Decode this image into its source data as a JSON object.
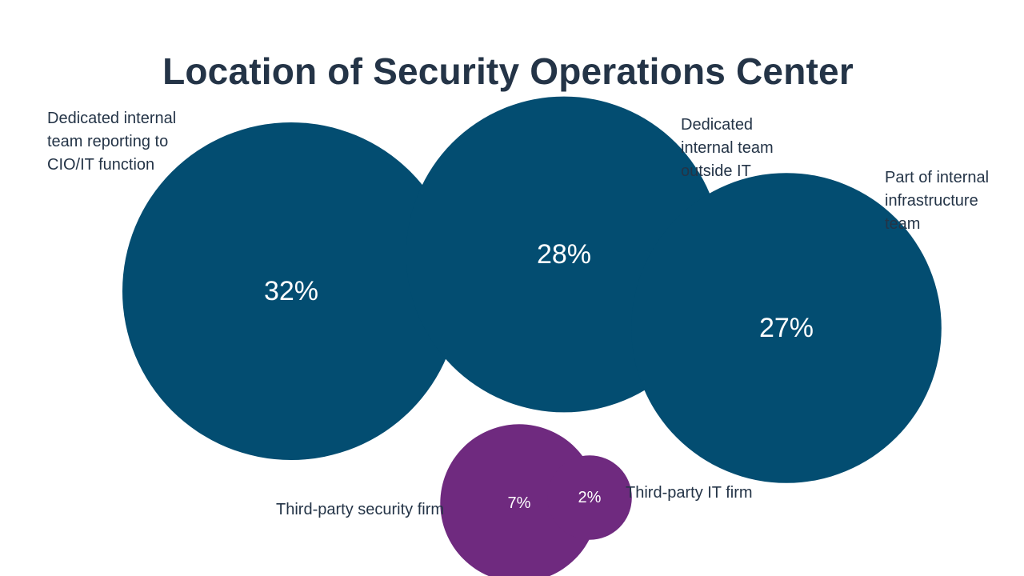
{
  "chart_data": {
    "type": "bubble",
    "title": "Location of Security Operations Center",
    "unit": "%",
    "colors": {
      "primary": "#034d71",
      "secondary": "#6f2a7f"
    },
    "points": [
      {
        "category": "Dedicated internal team reporting to CIO/IT function",
        "value": 32,
        "label": "32%",
        "color": "#034d71"
      },
      {
        "category": "Dedicated internal team outside IT",
        "value": 28,
        "label": "28%",
        "color": "#034d71"
      },
      {
        "category": "Part of internal infrastructure team",
        "value": 27,
        "label": "27%",
        "color": "#034d71"
      },
      {
        "category": "Third-party security firm",
        "value": 7,
        "label": "7%",
        "color": "#6f2a7f"
      },
      {
        "category": "Third-party IT firm",
        "value": 2,
        "label": "2%",
        "color": "#6f2a7f"
      }
    ],
    "labels": {
      "l0": [
        "Dedicated internal",
        "team reporting to",
        "CIO/IT function"
      ],
      "l1": [
        "Dedicated",
        "internal team",
        "outside IT"
      ],
      "l2": [
        "Part of internal",
        "infrastructure",
        "team"
      ],
      "l3": [
        "Third-party security firm"
      ],
      "l4": [
        "Third-party IT firm"
      ]
    }
  }
}
